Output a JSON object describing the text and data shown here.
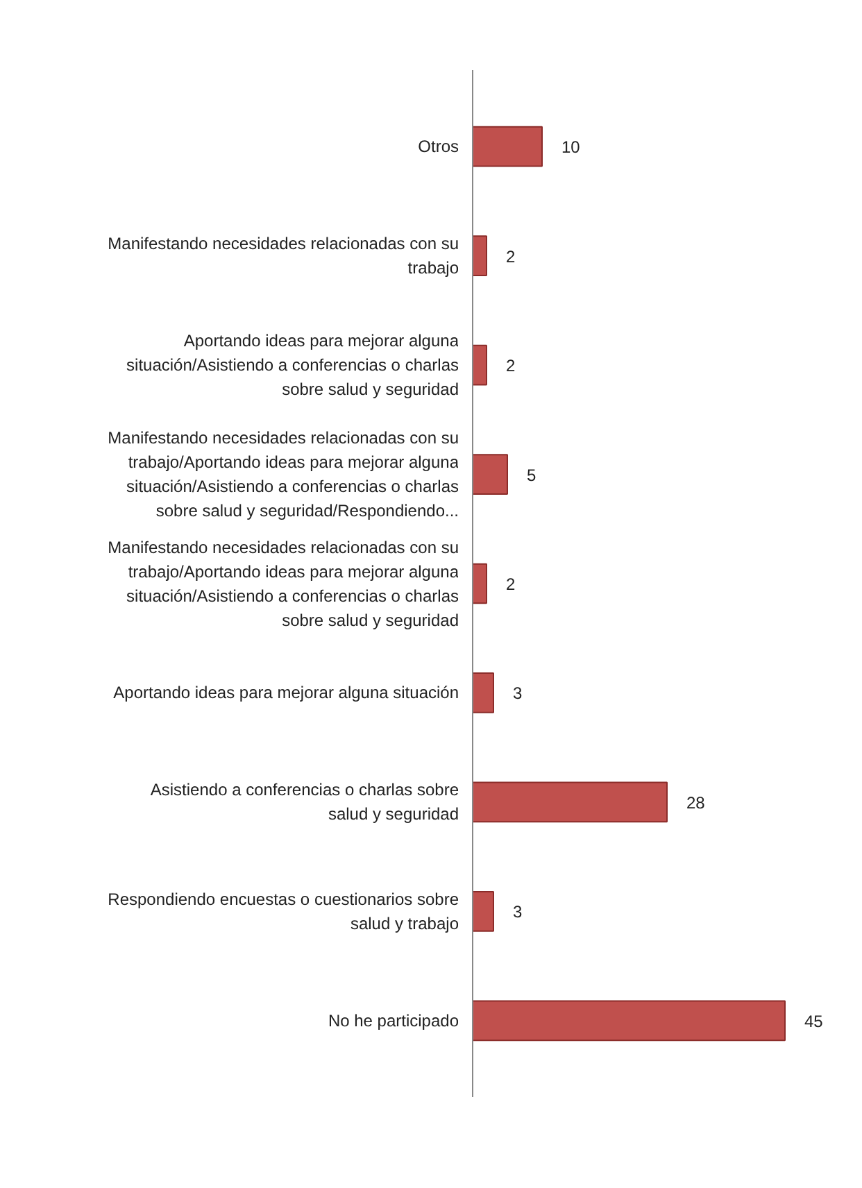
{
  "chart_data": {
    "type": "bar",
    "orientation": "horizontal",
    "categories": [
      "Otros",
      "Manifestando necesidades relacionadas con su trabajo",
      "Aportando ideas para mejorar alguna situación/Asistiendo a conferencias o charlas sobre salud y seguridad",
      "Manifestando necesidades relacionadas con su trabajo/Aportando ideas para mejorar alguna situación/Asistiendo a conferencias o charlas sobre salud y seguridad/Respondiendo...",
      "Manifestando necesidades relacionadas con su trabajo/Aportando ideas para mejorar alguna situación/Asistiendo a conferencias o charlas sobre salud y seguridad",
      "Aportando ideas para mejorar alguna situación",
      "Asistiendo a conferencias o charlas sobre salud y seguridad",
      "Respondiendo encuestas o cuestionarios sobre salud y trabajo",
      "No he participado"
    ],
    "values": [
      10,
      2,
      2,
      5,
      2,
      3,
      28,
      3,
      45
    ],
    "color": "#c0504d",
    "data_labels": true,
    "grid": false
  }
}
